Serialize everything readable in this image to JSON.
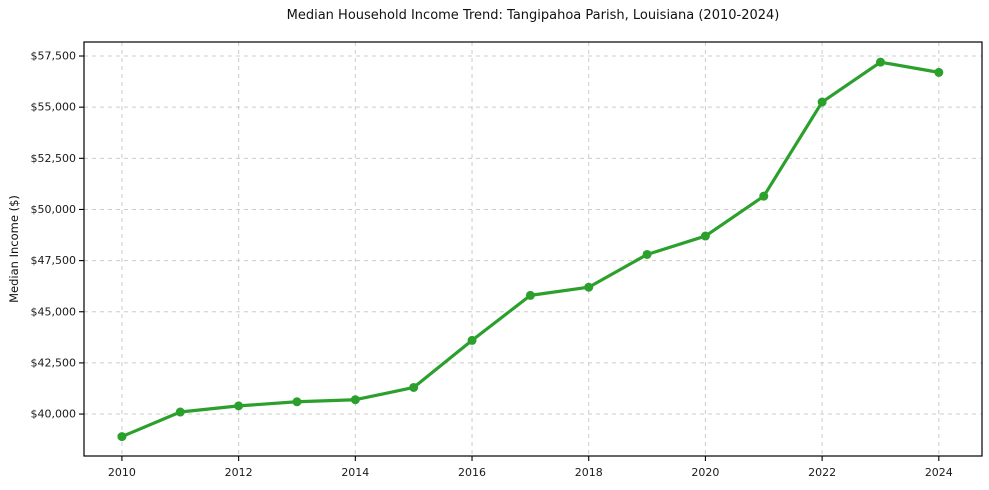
{
  "figure": {
    "background": "#ffffff"
  },
  "chart_data": {
    "type": "line",
    "title": "Median Household Income Trend: Tangipahoa Parish, Louisiana (2010-2024)",
    "xlabel": "",
    "ylabel": "Median Income ($)",
    "x": [
      2010,
      2011,
      2012,
      2013,
      2014,
      2015,
      2016,
      2017,
      2018,
      2019,
      2020,
      2021,
      2022,
      2023,
      2024
    ],
    "series": [
      {
        "name": "Median Household Income",
        "color": "#2ca02c",
        "values": [
          38900,
          40100,
          40400,
          40600,
          40700,
          41300,
          43600,
          45800,
          46200,
          47800,
          48700,
          50650,
          55250,
          57200,
          56700
        ]
      }
    ],
    "xlim": [
      2009.35,
      2024.74
    ],
    "ylim": [
      37950,
      58185
    ],
    "x_ticks": {
      "values": [
        2010,
        2012,
        2014,
        2016,
        2018,
        2020,
        2022,
        2024
      ],
      "labels": [
        "2010",
        "2012",
        "2014",
        "2016",
        "2018",
        "2020",
        "2022",
        "2024"
      ]
    },
    "y_ticks": {
      "values": [
        40000,
        42500,
        45000,
        47500,
        50000,
        52500,
        55000,
        57500
      ],
      "labels": [
        "$40,000",
        "$42,500",
        "$45,000",
        "$47,500",
        "$50,000",
        "$52,500",
        "$55,000",
        "$57,500"
      ]
    },
    "grid": {
      "visible": true,
      "style": "dashed",
      "color": "#cccccc"
    },
    "axes": {
      "spine_color": "#000000",
      "tick_color": "#000000"
    },
    "marker": {
      "shape": "circle",
      "size": 9
    },
    "legend": "none"
  }
}
